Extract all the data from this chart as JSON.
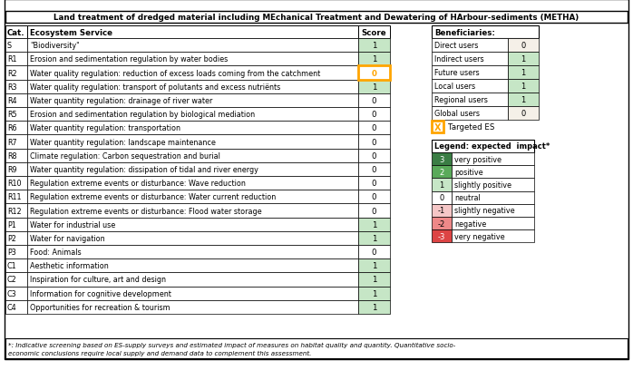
{
  "title": "Land treatment of dredged material including MEchanical Treatment and Dewatering of HArbour-sediments (METHA)",
  "main_headers": [
    "Cat.",
    "Ecosystem Service",
    "Score"
  ],
  "main_rows": [
    [
      "S",
      "\"Biodiversity\"",
      1
    ],
    [
      "R1",
      "Erosion and sedimentation regulation by water bodies",
      1
    ],
    [
      "R2",
      "Water quality regulation: reduction of excess loads coming from the catchment",
      0
    ],
    [
      "R3",
      "Water quality regulation: transport of polutants and excess nutriënts",
      1
    ],
    [
      "R4",
      "Water quantity regulation: drainage of river water",
      0
    ],
    [
      "R5",
      "Erosion and sedimentation regulation by biological mediation",
      0
    ],
    [
      "R6",
      "Water quantity regulation: transportation",
      0
    ],
    [
      "R7",
      "Water quantity regulation: landscape maintenance",
      0
    ],
    [
      "R8",
      "Climate regulation: Carbon sequestration and burial",
      0
    ],
    [
      "R9",
      "Water quantity regulation: dissipation of tidal and river energy",
      0
    ],
    [
      "R10",
      "Regulation extreme events or disturbance: Wave reduction",
      0
    ],
    [
      "R11",
      "Regulation extreme events or disturbance: Water current reduction",
      0
    ],
    [
      "R12",
      "Regulation extreme events or disturbance: Flood water storage",
      0
    ],
    [
      "P1",
      "Water for industrial use",
      1
    ],
    [
      "P2",
      "Water for navigation",
      1
    ],
    [
      "P3",
      "Food: Animals",
      0
    ],
    [
      "C1",
      "Aesthetic information",
      1
    ],
    [
      "C2",
      "Inspiration for culture, art and design",
      1
    ],
    [
      "C3",
      "Information for cognitive development",
      1
    ],
    [
      "C4",
      "Opportunities for recreation & tourism",
      1
    ]
  ],
  "targeted_row_index": 2,
  "targeted_color": "#FFA500",
  "ben_header": "Beneficiaries:",
  "ben_rows": [
    [
      "Direct users",
      0
    ],
    [
      "Indirect users",
      1
    ],
    [
      "Future users",
      1
    ],
    [
      "Local users",
      1
    ],
    [
      "Regional users",
      1
    ],
    [
      "Global users",
      0
    ]
  ],
  "leg_header": "Legend: expected  impact*",
  "leg_rows": [
    [
      3,
      "very positive"
    ],
    [
      2,
      "positive"
    ],
    [
      1,
      "slightly positive"
    ],
    [
      0,
      "neutral"
    ],
    [
      -1,
      "slightly negative"
    ],
    [
      -2,
      "negative"
    ],
    [
      -3,
      "very negative"
    ]
  ],
  "targeted_es_label": "Targeted ES",
  "footnote_line1": "*: Indicative screening based on ES-supply surveys and estimated impact of measures on habitat quality and quantity. Quantitative socio-",
  "footnote_line2": "economic conclusions require local supply and demand data to complement this assessment.",
  "score_colors": {
    "3": "#3a7d44",
    "2": "#5aaa5a",
    "1": "#c6e6c6",
    "0": "#FFFFFF",
    "-1": "#f5c6c6",
    "-2": "#ee8888",
    "-3": "#dd4444"
  },
  "score_text_colors": {
    "3": "white",
    "2": "white",
    "1": "black",
    "0": "black",
    "-1": "black",
    "-2": "black",
    "-3": "white"
  },
  "ben_score_colors": {
    "0": "#f5f0e8",
    "1": "#c6e6c6"
  }
}
